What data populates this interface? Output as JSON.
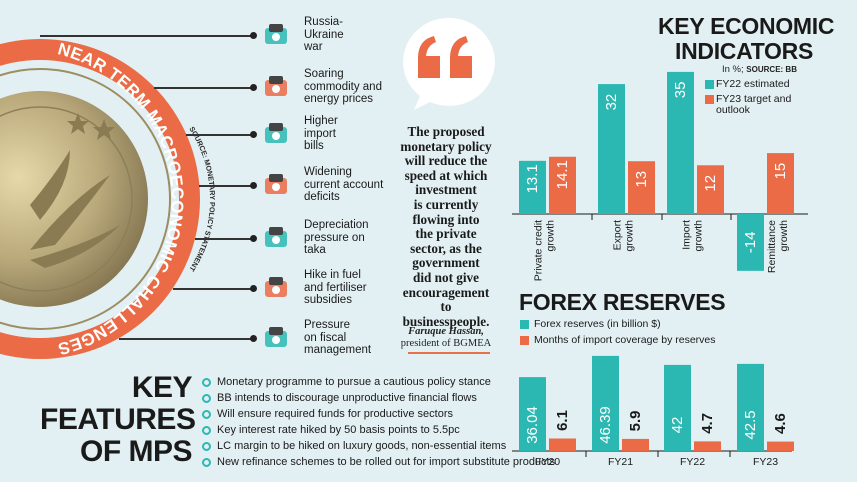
{
  "left_panel": {
    "band_title": "NEAR TERM MACROECONOMIC CHALLENGES",
    "source_text": "SOURCE: MONETARY POLICY STATEMENT",
    "colors": {
      "band": "#ea6b45",
      "coin": "#b9a87a",
      "teal": "#2cb8b2"
    },
    "challenges": [
      {
        "label": "Russia-\nUkraine\nwar",
        "icon": "globe-war-icon"
      },
      {
        "label": "Soaring\ncommodity and\nenergy prices",
        "icon": "commodity-icon"
      },
      {
        "label": "Higher\nimport\nbills",
        "icon": "import-bills-icon"
      },
      {
        "label": "Widening\ncurrent account\ndeficits",
        "icon": "deficit-icon"
      },
      {
        "label": "Depreciation\npressure on\ntaka",
        "icon": "taka-note-icon"
      },
      {
        "label": "Hike in fuel\nand fertiliser\nsubsidies",
        "icon": "fuel-pump-icon"
      },
      {
        "label": "Pressure\non fiscal\nmanagement",
        "icon": "fiscal-icon"
      }
    ]
  },
  "quote": {
    "mark": "“",
    "text": "The proposed\nmonetary policy\nwill reduce the\nspeed at which\ninvestment\nis currently\nflowing into\nthe private\nsector, as the\ngovernment\ndid not give\nencouragement\nto\nbusinesspeople.",
    "author_name": "Faruque Hassan,",
    "author_title": "president of BGMEA"
  },
  "key_features": {
    "heading": [
      "KEY",
      "FEATURES",
      "OF MPS"
    ],
    "items": [
      "Monetary programme to pursue a cautious policy stance",
      "BB intends to discourage unproductive financial flows",
      "Will ensure required funds for productive sectors",
      "Key interest rate hiked by 50 basis points to 5.5pc",
      "LC margin to be hiked on luxury goods, non-essential items",
      "New refinance schemes to be rolled out for import substitute products"
    ]
  },
  "chart_data": [
    {
      "type": "bar",
      "title": "KEY ECONOMIC INDICATORS",
      "subtitle_unit": "In %;",
      "subtitle_source": "SOURCE: BB",
      "categories": [
        "Private credit growth",
        "Export growth",
        "Import growth",
        "Remittance growth"
      ],
      "series": [
        {
          "name": "FY22 estimated",
          "values": [
            13.1,
            32,
            35,
            -14
          ],
          "labels": [
            "13.1",
            "32",
            "35",
            "-14"
          ],
          "color": "#2cb8b2"
        },
        {
          "name": "FY23 target and outlook",
          "values": [
            14.1,
            13,
            12,
            15
          ],
          "labels": [
            "14.1",
            "13",
            "12",
            "15"
          ],
          "color": "#ea6b45"
        }
      ],
      "ylim": [
        -14,
        35
      ],
      "grid": false,
      "legend": "top-right"
    },
    {
      "type": "bar",
      "title": "FOREX RESERVES",
      "categories": [
        "FY20",
        "FY21",
        "FY22",
        "FY23"
      ],
      "series": [
        {
          "name": "Forex reserves (in billion $)",
          "values": [
            36.04,
            46.39,
            42,
            42.5
          ],
          "labels": [
            "36.04",
            "46.39",
            "42",
            "42.5"
          ],
          "color": "#2cb8b2"
        },
        {
          "name": "Months of import coverage by reserves",
          "values": [
            6.1,
            5.9,
            4.7,
            4.6
          ],
          "labels": [
            "6.1",
            "5.9",
            "4.7",
            "4.6"
          ],
          "color": "#ea6b45"
        }
      ],
      "grid": false,
      "legend": "top-left"
    }
  ]
}
